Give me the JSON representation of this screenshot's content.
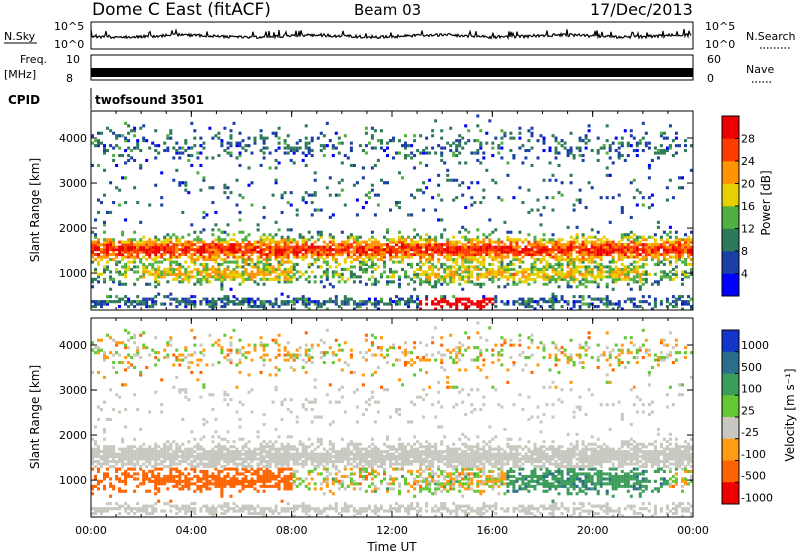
{
  "header": {
    "title": "Dome C East (fitACF)",
    "beam": "Beam 03",
    "date": "17/Dec/2013"
  },
  "info_panels": {
    "nsky_label": "N.Sky",
    "nsky_ticks": [
      "10^5",
      "10^0"
    ],
    "nsearch_label": "N.Search",
    "freq_label_1": "Freq.",
    "freq_label_2": "[MHz]",
    "freq_ticks": [
      "10",
      "8"
    ],
    "nave_ticks": [
      "60",
      "0"
    ],
    "nave_label": "Nave",
    "cpid_label": "CPID",
    "cpid_value": "twofsound 3501"
  },
  "chart_data": [
    {
      "type": "heatmap",
      "name": "power",
      "xlabel": "",
      "ylabel": "Slant Range [km]",
      "x_ticks": [
        "00:00",
        "04:00",
        "08:00",
        "12:00",
        "16:00",
        "20:00",
        "00:00"
      ],
      "xlim": [
        0,
        24
      ],
      "y_ticks": [
        1000,
        2000,
        3000,
        4000
      ],
      "ylim": [
        180,
        4600
      ],
      "colorbar": {
        "label": "Power [dB]",
        "ticks": [
          4,
          8,
          12,
          16,
          20,
          24,
          28
        ],
        "range": [
          0,
          32
        ],
        "colors": [
          "#0000ff",
          "#1c3fa6",
          "#2e7a58",
          "#4fb040",
          "#e8d000",
          "#ff9400",
          "#ff3c00",
          "#ee0000"
        ]
      },
      "bands": [
        {
          "center_km": 1500,
          "level_db": 22,
          "note": "strong near-range scatter band"
        },
        {
          "center_km": 1950,
          "level_db": 12
        },
        {
          "center_km": 950,
          "level_db": 20
        },
        {
          "center_km": 300,
          "level_db": 8
        },
        {
          "center_km": 3700,
          "level_db": 10
        }
      ]
    },
    {
      "type": "heatmap",
      "name": "velocity",
      "xlabel": "Time UT",
      "ylabel": "Slant Range [km]",
      "x_ticks": [
        "00:00",
        "04:00",
        "08:00",
        "12:00",
        "16:00",
        "20:00",
        "00:00"
      ],
      "xlim": [
        0,
        24
      ],
      "y_ticks": [
        1000,
        2000,
        3000,
        4000
      ],
      "ylim": [
        180,
        4600
      ],
      "colorbar": {
        "label": "Velocity [m s⁻¹]",
        "ticks": [
          "1000",
          "500",
          "100",
          "25",
          "-25",
          "-100",
          "-500",
          "-1000"
        ],
        "colors": [
          "#1436c8",
          "#2a6e8c",
          "#3c9c5a",
          "#64c834",
          "#c8c8c0",
          "#ff9c14",
          "#ff6400",
          "#ee0000"
        ]
      },
      "bands": [
        {
          "center_km": 1500,
          "value_ms": 0,
          "note": "ground scatter (grey)"
        },
        {
          "center_km": 900,
          "value_ms": -150
        },
        {
          "center_km": 750,
          "value_ms": 300,
          "note": "late-day positive velocities 17-23 UT"
        }
      ]
    }
  ]
}
